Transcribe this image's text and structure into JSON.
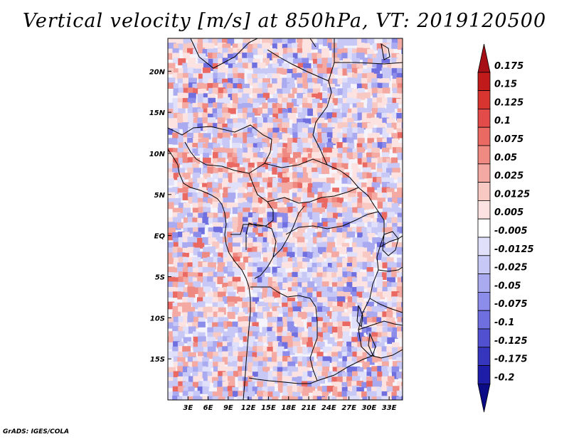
{
  "title": "Vertical velocity [m/s] at 850hPa, VT: 2019120500",
  "credit": "GrADS: IGES/COLA",
  "map": {
    "lon_range": [
      0,
      35
    ],
    "lat_range": [
      -20,
      24
    ],
    "lon_ticks": [
      "3E",
      "6E",
      "9E",
      "12E",
      "15E",
      "18E",
      "21E",
      "24E",
      "27E",
      "30E",
      "33E"
    ],
    "lon_tick_values": [
      3,
      6,
      9,
      12,
      15,
      18,
      21,
      24,
      27,
      30,
      33
    ],
    "lat_ticks": [
      "20N",
      "15N",
      "10N",
      "5N",
      "EQ",
      "5S",
      "10S",
      "15S"
    ],
    "lat_tick_values": [
      20,
      15,
      10,
      5,
      0,
      -5,
      -10,
      -15
    ]
  },
  "colorbar": {
    "labels": [
      "0.175",
      "0.15",
      "0.125",
      "0.1",
      "0.075",
      "0.05",
      "0.025",
      "0.0125",
      "0.005",
      "-0.005",
      "-0.0125",
      "-0.025",
      "-0.05",
      "-0.075",
      "-0.1",
      "-0.125",
      "-0.175",
      "-0.2"
    ],
    "colors": [
      "#a50f15",
      "#c11a1a",
      "#d93530",
      "#e34a4a",
      "#ea6a63",
      "#ef8a82",
      "#f4aaa3",
      "#f8c8c3",
      "#fce3e1",
      "#ffffff",
      "#e0e0fb",
      "#c8c8f7",
      "#aaaaf1",
      "#8c8ceb",
      "#6f6fe0",
      "#5050d0",
      "#3535bd",
      "#1d1da8",
      "#0b0b85"
    ]
  }
}
